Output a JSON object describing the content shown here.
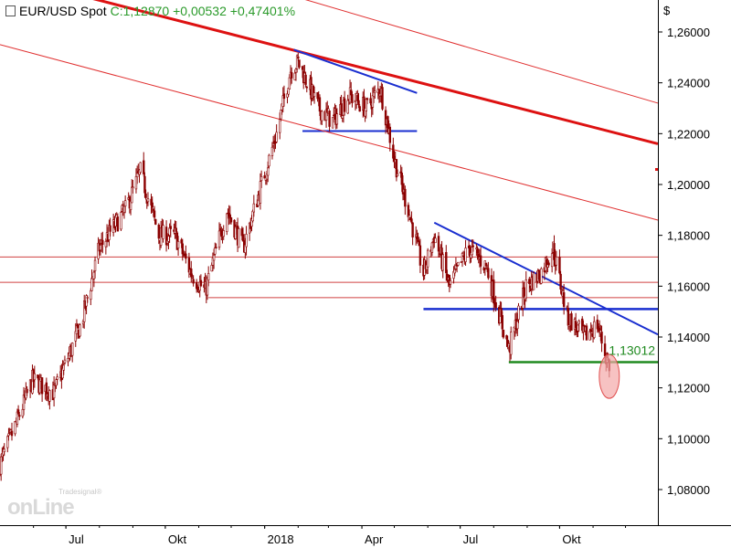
{
  "header": {
    "symbol": "EUR/USD Spot",
    "close_label": "C:",
    "close_value": "1,12870",
    "change_abs": "+0,00532",
    "change_pct": "+0,47401%"
  },
  "currency_label": "$",
  "logo": {
    "brand": "onLine",
    "sub": "Tradesignal®"
  },
  "colors": {
    "candle": "#8b0000",
    "trend_bold": "#dd1111",
    "channel_thin": "#e03030",
    "support_thin": "#d04040",
    "pattern_blue": "#1a2fd0",
    "support_green": "#1f8a1f",
    "highlight_fill": "#f4a8a8",
    "highlight_stroke": "#e05050",
    "positive": "#2a9a2a"
  },
  "chart_data": {
    "type": "candlestick",
    "x_labels": [
      "Jul",
      "Okt",
      "2018",
      "Apr",
      "Jul",
      "Okt"
    ],
    "x_range": [
      "2017-05-01",
      "2018-12-31"
    ],
    "y_ticks": [
      "1,26000",
      "1,24000",
      "1,22000",
      "1,20000",
      "1,18000",
      "1,16000",
      "1,14000",
      "1,12000",
      "1,10000",
      "1,08000"
    ],
    "y_range": [
      1.07,
      1.27
    ],
    "price_path": [
      [
        "2017-05-01",
        1.09
      ],
      [
        "2017-05-15",
        1.105
      ],
      [
        "2017-05-31",
        1.123
      ],
      [
        "2017-06-20",
        1.118
      ],
      [
        "2017-07-15",
        1.145
      ],
      [
        "2017-08-01",
        1.175
      ],
      [
        "2017-08-25",
        1.19
      ],
      [
        "2017-09-08",
        1.205
      ],
      [
        "2017-09-25",
        1.18
      ],
      [
        "2017-10-10",
        1.18
      ],
      [
        "2017-10-25",
        1.165
      ],
      [
        "2017-11-07",
        1.158
      ],
      [
        "2017-11-27",
        1.19
      ],
      [
        "2017-12-12",
        1.175
      ],
      [
        "2017-12-29",
        1.2
      ],
      [
        "2018-01-12",
        1.22
      ],
      [
        "2018-01-25",
        1.245
      ],
      [
        "2018-02-01",
        1.248
      ],
      [
        "2018-02-20",
        1.23
      ],
      [
        "2018-03-05",
        1.225
      ],
      [
        "2018-03-20",
        1.235
      ],
      [
        "2018-04-05",
        1.23
      ],
      [
        "2018-04-18",
        1.238
      ],
      [
        "2018-05-01",
        1.21
      ],
      [
        "2018-05-14",
        1.19
      ],
      [
        "2018-05-28",
        1.165
      ],
      [
        "2018-06-07",
        1.18
      ],
      [
        "2018-06-21",
        1.16
      ],
      [
        "2018-07-09",
        1.175
      ],
      [
        "2018-07-25",
        1.168
      ],
      [
        "2018-08-15",
        1.135
      ],
      [
        "2018-08-31",
        1.16
      ],
      [
        "2018-09-13",
        1.165
      ],
      [
        "2018-09-25",
        1.175
      ],
      [
        "2018-10-08",
        1.148
      ],
      [
        "2018-10-24",
        1.14
      ],
      [
        "2018-11-05",
        1.145
      ],
      [
        "2018-11-13",
        1.132
      ],
      [
        "2018-11-16",
        1.1287
      ]
    ],
    "trendlines": [
      {
        "style": "thick-red",
        "from": [
          "2017-05-01",
          1.2825
        ],
        "to": [
          "2018-12-31",
          1.216
        ]
      },
      {
        "style": "thin-red",
        "from": [
          "2017-05-01",
          1.308
        ],
        "to": [
          "2018-12-31",
          1.232
        ]
      },
      {
        "style": "thin-red",
        "from": [
          "2017-05-01",
          1.255
        ],
        "to": [
          "2018-12-31",
          1.186
        ]
      },
      {
        "style": "blue",
        "from": [
          "2018-01-28",
          1.253
        ],
        "to": [
          "2018-05-22",
          1.236
        ]
      },
      {
        "style": "blue",
        "from": [
          "2018-06-07",
          1.185
        ],
        "to": [
          "2018-12-31",
          1.141
        ]
      }
    ],
    "horizontal_levels": [
      {
        "style": "thin-red",
        "value": 1.1715,
        "from": "2017-05-01",
        "to": "2018-12-31"
      },
      {
        "style": "thin-red",
        "value": 1.1615,
        "from": "2017-05-01",
        "to": "2018-12-31"
      },
      {
        "style": "thin-red",
        "value": 1.1555,
        "from": "2017-11-10",
        "to": "2018-12-31"
      },
      {
        "style": "blue",
        "value": 1.221,
        "from": "2018-02-05",
        "to": "2018-05-22"
      },
      {
        "style": "blue-thick",
        "value": 1.151,
        "from": "2018-05-28",
        "to": "2018-12-31"
      },
      {
        "style": "green",
        "value": 1.1301,
        "from": "2018-08-15",
        "to": "2018-12-31"
      }
    ],
    "annotations": [
      {
        "text": "1,13012",
        "date": "2018-11-14",
        "value": 1.133
      }
    ],
    "highlight": {
      "date": "2018-11-16",
      "value": 1.1245
    }
  }
}
